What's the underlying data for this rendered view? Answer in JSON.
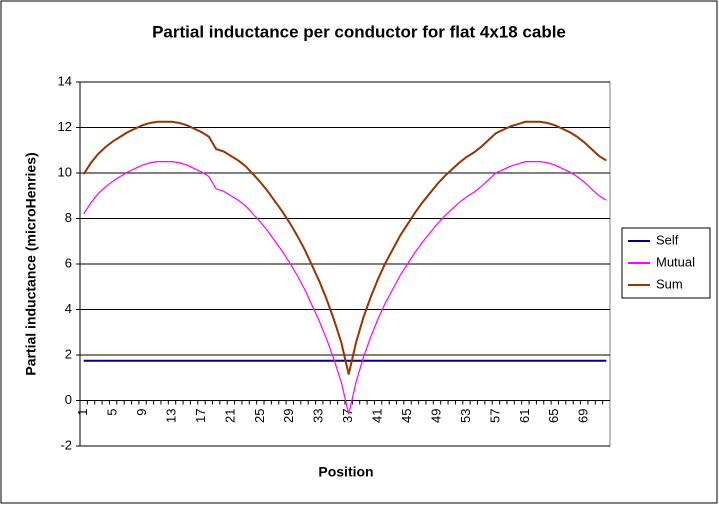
{
  "chart_data": {
    "type": "line",
    "title": "Partial inductance per conductor for flat 4x18 cable",
    "x_label": "Position",
    "y_label": "Partial inductance (microHenries)",
    "categories": [
      "1",
      null,
      null,
      null,
      "5",
      null,
      null,
      null,
      "9",
      null,
      null,
      null,
      "13",
      null,
      null,
      null,
      "17",
      null,
      null,
      null,
      "21",
      null,
      null,
      null,
      "25",
      null,
      null,
      null,
      "29",
      null,
      null,
      null,
      "33",
      null,
      null,
      null,
      "37",
      null,
      null,
      null,
      "41",
      null,
      null,
      null,
      "45",
      null,
      null,
      null,
      "49",
      null,
      null,
      null,
      "53",
      null,
      null,
      null,
      "57",
      null,
      null,
      null,
      "61",
      null,
      null,
      null,
      "65",
      null,
      null,
      null,
      "69",
      null,
      null,
      null
    ],
    "series": [
      {
        "name": "Self",
        "color": "#000080",
        "values": [
          1.75,
          1.75,
          1.75,
          1.75,
          1.75,
          1.75,
          1.75,
          1.75,
          1.75,
          1.75,
          1.75,
          1.75,
          1.75,
          1.75,
          1.75,
          1.75,
          1.75,
          1.75,
          1.75,
          1.75,
          1.75,
          1.75,
          1.75,
          1.75,
          1.75,
          1.75,
          1.75,
          1.75,
          1.75,
          1.75,
          1.75,
          1.75,
          1.75,
          1.75,
          1.75,
          1.75,
          1.75,
          1.75,
          1.75,
          1.75,
          1.75,
          1.75,
          1.75,
          1.75,
          1.75,
          1.75,
          1.75,
          1.75,
          1.75,
          1.75,
          1.75,
          1.75,
          1.75,
          1.75,
          1.75,
          1.75,
          1.75,
          1.75,
          1.75,
          1.75,
          1.75,
          1.75,
          1.75,
          1.75,
          1.75,
          1.75,
          1.75,
          1.75,
          1.75,
          1.75,
          1.75,
          1.75
        ]
      },
      {
        "name": "Mutual",
        "color": "#ff00ff",
        "values": [
          8.2,
          8.7,
          9.1,
          9.4,
          9.65,
          9.85,
          10.05,
          10.2,
          10.35,
          10.45,
          10.5,
          10.5,
          10.5,
          10.45,
          10.35,
          10.2,
          10.05,
          9.85,
          9.3,
          9.2,
          9.0,
          8.8,
          8.55,
          8.2,
          7.85,
          7.45,
          7.0,
          6.55,
          6.05,
          5.5,
          4.9,
          4.2,
          3.5,
          2.7,
          1.8,
          0.8,
          -0.6,
          0.8,
          1.9,
          2.8,
          3.6,
          4.3,
          4.9,
          5.5,
          6.0,
          6.5,
          6.95,
          7.35,
          7.75,
          8.1,
          8.4,
          8.7,
          8.95,
          9.15,
          9.4,
          9.7,
          10.0,
          10.15,
          10.3,
          10.4,
          10.5,
          10.5,
          10.5,
          10.45,
          10.35,
          10.2,
          10.05,
          9.85,
          9.6,
          9.3,
          9.0,
          8.8
        ]
      },
      {
        "name": "Sum",
        "color": "#993300",
        "values": [
          9.95,
          10.45,
          10.85,
          11.15,
          11.4,
          11.6,
          11.8,
          11.95,
          12.1,
          12.2,
          12.25,
          12.25,
          12.25,
          12.2,
          12.1,
          11.95,
          11.8,
          11.6,
          11.05,
          10.95,
          10.75,
          10.55,
          10.3,
          9.95,
          9.6,
          9.2,
          8.75,
          8.3,
          7.8,
          7.25,
          6.65,
          5.95,
          5.25,
          4.45,
          3.55,
          2.55,
          1.15,
          2.55,
          3.65,
          4.55,
          5.35,
          6.05,
          6.65,
          7.25,
          7.75,
          8.25,
          8.7,
          9.1,
          9.5,
          9.85,
          10.15,
          10.45,
          10.7,
          10.9,
          11.15,
          11.45,
          11.75,
          11.9,
          12.05,
          12.15,
          12.25,
          12.25,
          12.25,
          12.2,
          12.1,
          11.95,
          11.8,
          11.6,
          11.35,
          11.05,
          10.75,
          10.55
        ]
      }
    ],
    "ylim": [
      -2,
      14
    ],
    "yticks": [
      -2,
      0,
      2,
      4,
      6,
      8,
      10,
      12,
      14
    ],
    "grid": true,
    "legend": "right"
  }
}
